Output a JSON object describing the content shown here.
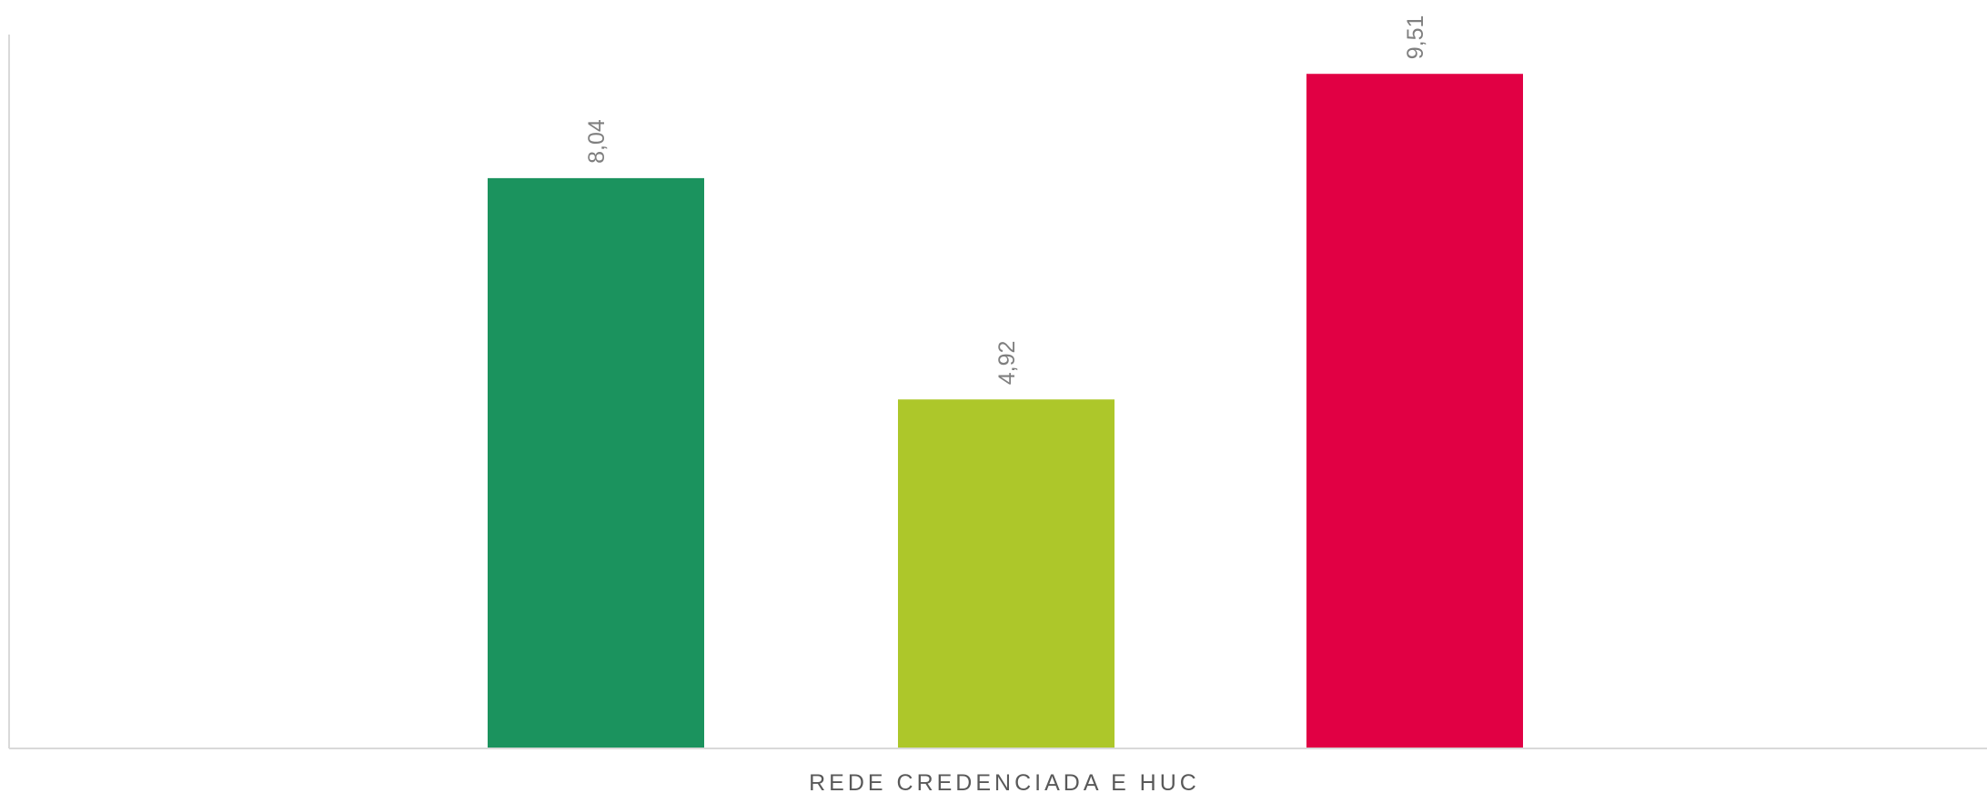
{
  "chart_data": {
    "type": "bar",
    "categories": [
      "REDE CREDENCIADA E HUC"
    ],
    "series": [
      {
        "value": 8.04,
        "label": "8,04",
        "color": "#1b935e"
      },
      {
        "value": 4.92,
        "label": "4,92",
        "color": "#adc72a"
      },
      {
        "value": 9.51,
        "label": "9,51",
        "color": "#e10044"
      }
    ],
    "ylim": [
      0,
      10
    ],
    "grid": false,
    "legend": "none"
  },
  "axis_color": "#d9d9d9",
  "label_color": "#7f7f7f",
  "category_label_color": "#595959"
}
